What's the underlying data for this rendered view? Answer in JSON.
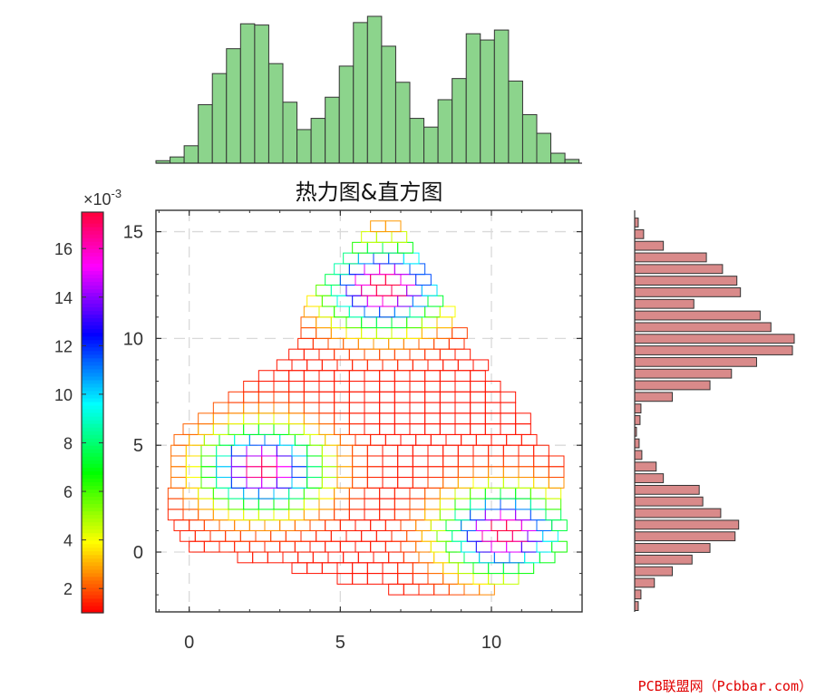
{
  "title": "热力图&直方图",
  "watermark": "PCB联盟网（Pcbbar.com）",
  "colorbar": {
    "exponent_label": "×10^-3",
    "exponent_base": "×10",
    "exponent_power": "-3",
    "ticks": [
      2,
      4,
      6,
      8,
      10,
      12,
      14,
      16
    ],
    "range": [
      1.0,
      17.5
    ],
    "colormap": "hsv (red-orange-yellow-green-cyan-blue-magenta-red)"
  },
  "colors": {
    "top_hist_fill": "#8cd48c",
    "right_hist_fill": "#d98a8a",
    "hist_edge": "#333333",
    "grid": "#d9d9d9",
    "axes": "#333333"
  },
  "chart_data": [
    {
      "type": "heatmap",
      "title": "热力图&直方图",
      "xlabel": "",
      "ylabel": "",
      "xlim": [
        -1.1,
        13
      ],
      "ylim": [
        -2.8,
        16
      ],
      "xticks": [
        0,
        5,
        10
      ],
      "yticks": [
        0,
        5,
        10,
        15
      ],
      "grid": true,
      "cell_size": 0.5,
      "description": "Gridded 2D density of three clusters, drawn as unfilled square cells colored by density (hsv colormap)",
      "clusters": [
        {
          "center": [
            6.5,
            12.5
          ],
          "peak": 0.0175
        },
        {
          "center": [
            2.5,
            4.0
          ],
          "peak": 0.0165
        },
        {
          "center": [
            10.5,
            1.0
          ],
          "peak": 0.017
        }
      ],
      "row_extents": [
        {
          "y": -2.0,
          "x_min": 6.6,
          "x_max": 10.4
        },
        {
          "y": -1.5,
          "x_min": 4.9,
          "x_max": 11.3
        },
        {
          "y": -1.0,
          "x_min": 3.4,
          "x_max": 11.8
        },
        {
          "y": -0.5,
          "x_min": 1.6,
          "x_max": 12.2
        },
        {
          "y": 0.0,
          "x_min": 0.0,
          "x_max": 12.5
        },
        {
          "y": 0.5,
          "x_min": -0.3,
          "x_max": 12.6
        },
        {
          "y": 1.0,
          "x_min": -0.5,
          "x_max": 12.6
        },
        {
          "y": 1.5,
          "x_min": -0.7,
          "x_max": 12.6
        },
        {
          "y": 2.0,
          "x_min": -0.7,
          "x_max": 12.6
        },
        {
          "y": 2.5,
          "x_min": -0.7,
          "x_max": 12.6
        },
        {
          "y": 3.0,
          "x_min": -0.6,
          "x_max": 12.6
        },
        {
          "y": 3.5,
          "x_min": -0.6,
          "x_max": 12.6
        },
        {
          "y": 4.0,
          "x_min": -0.6,
          "x_max": 12.5
        },
        {
          "y": 4.5,
          "x_min": -0.6,
          "x_max": 12.2
        },
        {
          "y": 5.0,
          "x_min": -0.5,
          "x_max": 11.9
        },
        {
          "y": 5.5,
          "x_min": -0.2,
          "x_max": 11.7
        },
        {
          "y": 6.0,
          "x_min": 0.3,
          "x_max": 11.3
        },
        {
          "y": 6.5,
          "x_min": 0.8,
          "x_max": 11.2
        },
        {
          "y": 7.0,
          "x_min": 1.3,
          "x_max": 11.0
        },
        {
          "y": 7.5,
          "x_min": 1.8,
          "x_max": 10.5
        },
        {
          "y": 8.0,
          "x_min": 2.3,
          "x_max": 10.2
        },
        {
          "y": 8.5,
          "x_min": 2.9,
          "x_max": 10.0
        },
        {
          "y": 9.0,
          "x_min": 3.3,
          "x_max": 9.6
        },
        {
          "y": 9.5,
          "x_min": 3.6,
          "x_max": 9.4
        },
        {
          "y": 10.0,
          "x_min": 3.7,
          "x_max": 9.2
        },
        {
          "y": 10.5,
          "x_min": 3.7,
          "x_max": 9.0
        },
        {
          "y": 11.0,
          "x_min": 3.8,
          "x_max": 8.8
        },
        {
          "y": 11.5,
          "x_min": 3.9,
          "x_max": 8.6
        },
        {
          "y": 12.0,
          "x_min": 4.2,
          "x_max": 8.4
        },
        {
          "y": 12.5,
          "x_min": 4.5,
          "x_max": 8.2
        },
        {
          "y": 13.0,
          "x_min": 4.8,
          "x_max": 8.0
        },
        {
          "y": 13.5,
          "x_min": 5.1,
          "x_max": 7.8
        },
        {
          "y": 14.0,
          "x_min": 5.4,
          "x_max": 7.6
        },
        {
          "y": 14.5,
          "x_min": 5.7,
          "x_max": 7.3
        },
        {
          "y": 15.0,
          "x_min": 6.0,
          "x_max": 7.1
        }
      ]
    },
    {
      "type": "bar",
      "orientation": "vertical",
      "position": "top",
      "description": "Histogram of x values",
      "bin_edges_x": [
        -1.1,
        12.9
      ],
      "values": [
        2,
        5,
        14,
        47,
        72,
        92,
        112,
        111,
        80,
        49,
        27,
        36,
        53,
        78,
        113,
        118,
        94,
        65,
        36,
        29,
        51,
        68,
        104,
        99,
        107,
        66,
        39,
        24,
        8,
        3
      ]
    },
    {
      "type": "bar",
      "orientation": "horizontal",
      "position": "right",
      "description": "Histogram of y values",
      "bin_edges_y": [
        -2.8,
        15.7
      ],
      "values": [
        2,
        3.5,
        11,
        21,
        32,
        42,
        56,
        58,
        48,
        38,
        36,
        16,
        12,
        4,
        2.5,
        1,
        3,
        3.5,
        21,
        42,
        54,
        68,
        88,
        89,
        76,
        70,
        33,
        59,
        57,
        49,
        40,
        16,
        5,
        2
      ]
    }
  ]
}
